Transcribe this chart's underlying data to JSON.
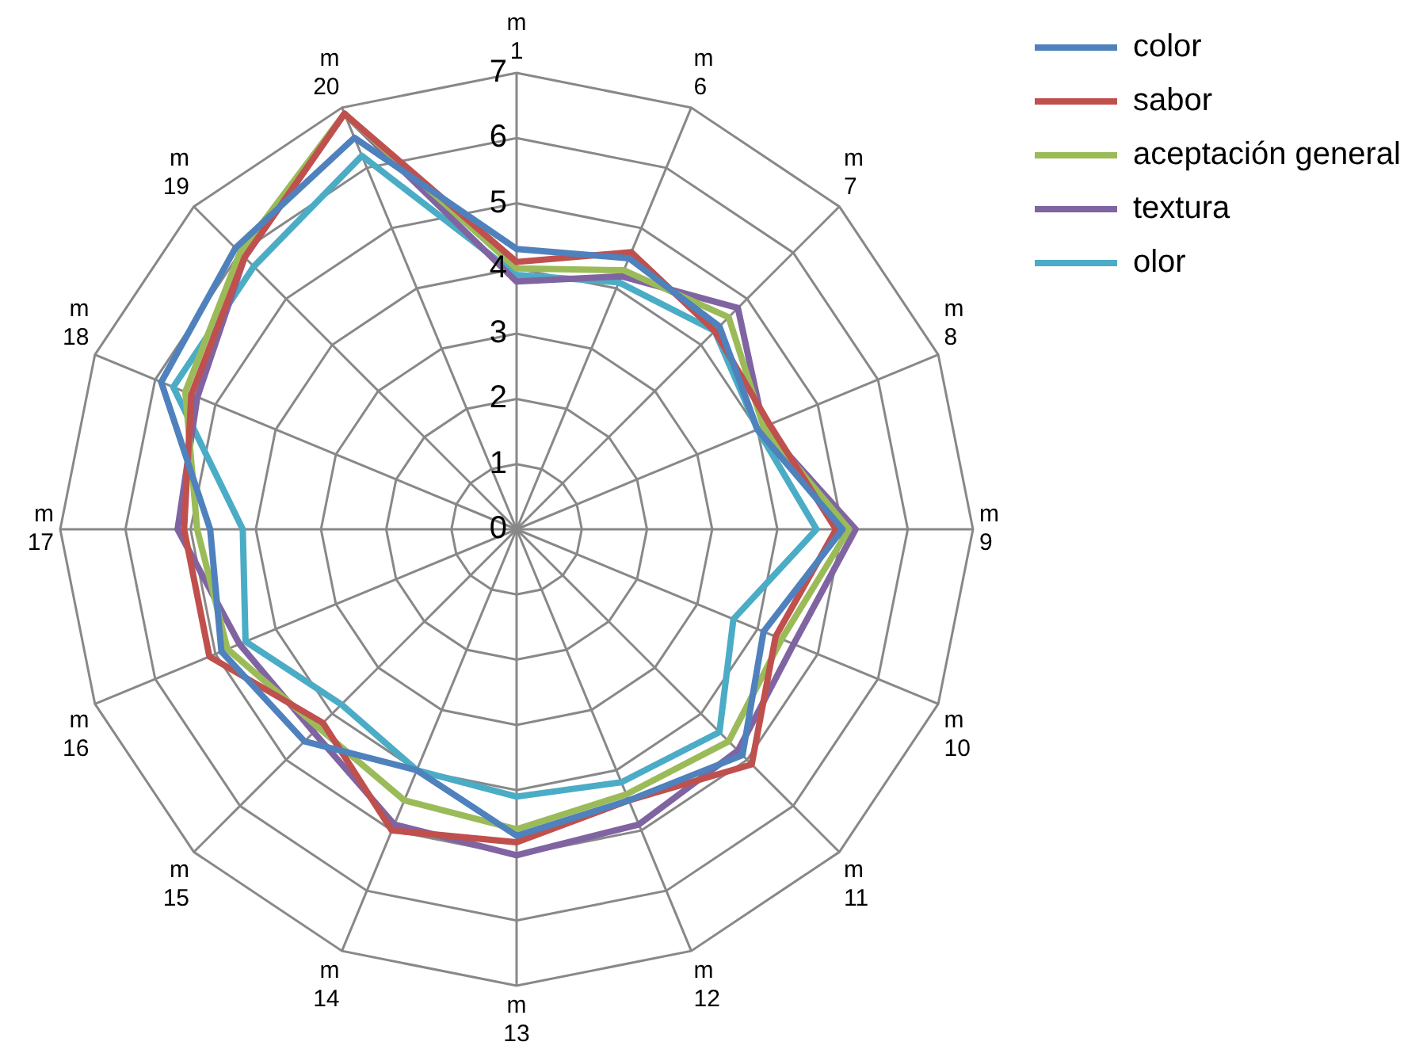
{
  "chart_data": {
    "type": "radar",
    "categories": [
      "m\n1",
      "m\n6",
      "m\n7",
      "m\n8",
      "m\n9",
      "m\n10",
      "m\n11",
      "m\n12",
      "m\n13",
      "m\n14",
      "m\n15",
      "m\n16",
      "m\n17",
      "m\n18",
      "m\n19",
      "m\n20"
    ],
    "series": [
      {
        "name": "color",
        "color": "#4f81bd",
        "values": [
          4.3,
          4.5,
          4.4,
          4.0,
          5.0,
          4.1,
          4.9,
          4.5,
          4.7,
          4.0,
          4.6,
          4.9,
          4.7,
          5.9,
          6.1,
          6.5
        ]
      },
      {
        "name": "sabor",
        "color": "#c0504d",
        "values": [
          4.1,
          4.6,
          4.3,
          4.2,
          4.9,
          4.3,
          5.1,
          4.5,
          4.8,
          5.0,
          4.2,
          5.1,
          5.1,
          5.4,
          5.9,
          6.9
        ]
      },
      {
        "name": "aceptación general",
        "color": "#9bbb59",
        "values": [
          4.0,
          4.3,
          4.6,
          4.1,
          5.1,
          4.4,
          4.6,
          4.4,
          4.6,
          4.5,
          4.3,
          4.8,
          4.9,
          5.5,
          6.0,
          6.9
        ]
      },
      {
        "name": "textura",
        "color": "#8064a2",
        "values": [
          3.8,
          4.2,
          4.8,
          4.1,
          5.2,
          4.6,
          4.8,
          4.9,
          5.0,
          4.9,
          4.4,
          4.6,
          5.2,
          5.3,
          5.9,
          6.9
        ]
      },
      {
        "name": "olor",
        "color": "#4bacc6",
        "values": [
          3.9,
          4.1,
          4.3,
          4.0,
          4.6,
          3.6,
          4.4,
          4.2,
          4.1,
          4.0,
          3.8,
          4.5,
          4.2,
          5.7,
          5.7,
          6.2
        ]
      }
    ],
    "ylim": [
      0,
      7
    ],
    "yticks": [
      0,
      1,
      2,
      3,
      4,
      5,
      6,
      7
    ],
    "grid": true,
    "legend": "top right",
    "marker": "none",
    "line_style": "solid"
  }
}
